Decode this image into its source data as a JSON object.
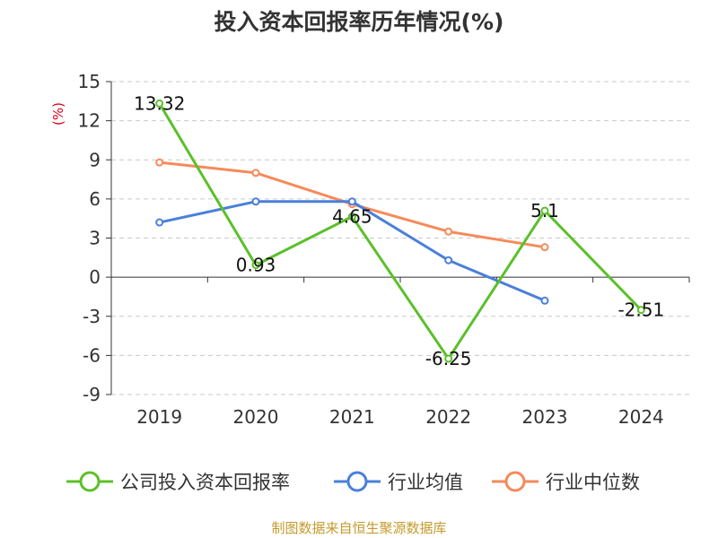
{
  "chart_data": {
    "type": "line",
    "title": "投入资本回报率历年情况(%)",
    "ylabel": "(%)",
    "categories": [
      "2019",
      "2020",
      "2021",
      "2022",
      "2023",
      "2024"
    ],
    "ylim": [
      -9,
      15
    ],
    "yticks": [
      15,
      12,
      9,
      6,
      3,
      0,
      -3,
      -6,
      -9
    ],
    "grid": true,
    "legend_position": "bottom",
    "series": [
      {
        "name": "公司投入资本回报率",
        "color": "#5bc02a",
        "values": [
          13.32,
          0.93,
          4.65,
          -6.25,
          5.1,
          -2.51
        ],
        "labels": [
          "13.32",
          "0.93",
          "4.65",
          "-6.25",
          "5.1",
          "-2.51"
        ]
      },
      {
        "name": "行业均值",
        "color": "#4a7fdb",
        "values": [
          4.2,
          5.8,
          5.8,
          1.3,
          -1.8,
          null
        ]
      },
      {
        "name": "行业中位数",
        "color": "#f58a5a",
        "values": [
          8.8,
          8.0,
          5.6,
          3.5,
          2.3,
          null
        ]
      }
    ],
    "source": "制图数据来自恒生聚源数据库"
  }
}
